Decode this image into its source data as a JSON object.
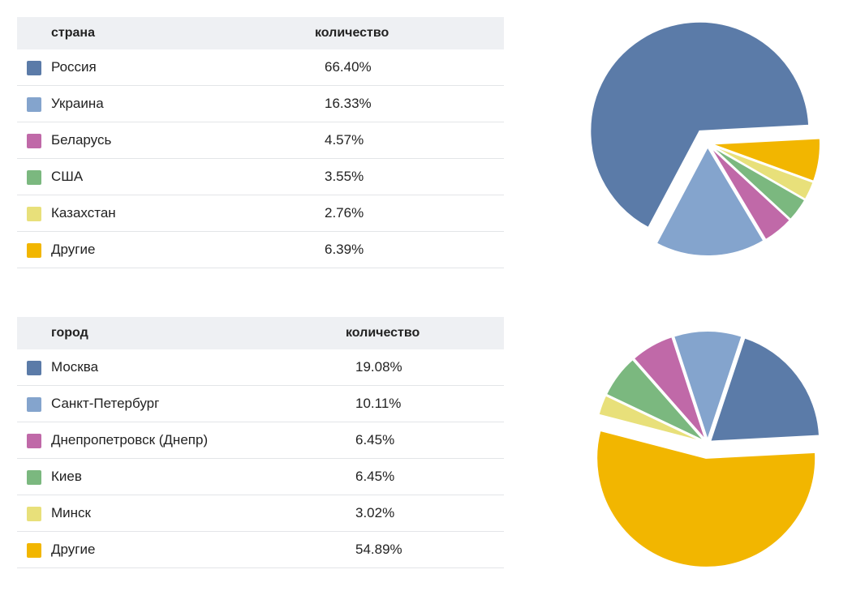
{
  "chart_data": [
    {
      "type": "pie",
      "column_headers": [
        "страна",
        "количество"
      ],
      "labels": [
        "Россия",
        "Украина",
        "Беларусь",
        "США",
        "Казахстан",
        "Другие"
      ],
      "values": [
        66.4,
        16.33,
        4.57,
        3.55,
        2.76,
        6.39
      ],
      "display_values": [
        "66.40%",
        "16.33%",
        "4.57%",
        "3.55%",
        "2.76%",
        "6.39%"
      ],
      "colors": [
        "#5b7ba8",
        "#84a4cd",
        "#c069a8",
        "#7bb87f",
        "#e8e07a",
        "#f2b600"
      ],
      "exploded": [
        0
      ]
    },
    {
      "type": "pie",
      "column_headers": [
        "город",
        "количество"
      ],
      "labels": [
        "Москва",
        "Санкт-Петербург",
        "Днепропетровск (Днепр)",
        "Киев",
        "Минск",
        "Другие"
      ],
      "values": [
        19.08,
        10.11,
        6.45,
        6.45,
        3.02,
        54.89
      ],
      "display_values": [
        "19.08%",
        "10.11%",
        "6.45%",
        "6.45%",
        "3.02%",
        "54.89%"
      ],
      "colors": [
        "#5b7ba8",
        "#84a4cd",
        "#c069a8",
        "#7bb87f",
        "#e8e07a",
        "#f2b600"
      ],
      "exploded": [
        5
      ]
    }
  ]
}
